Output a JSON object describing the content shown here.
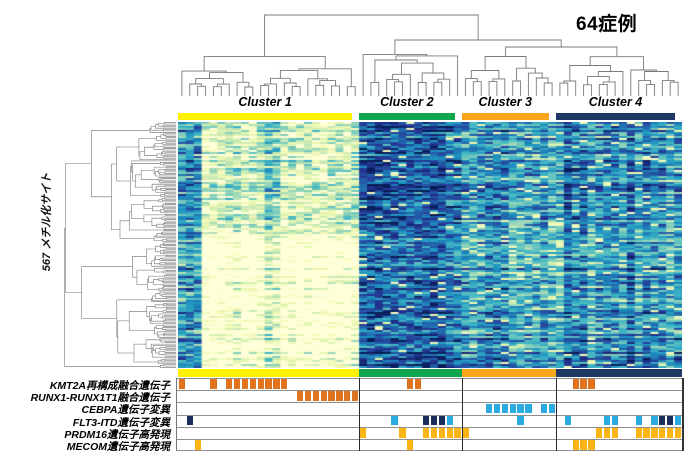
{
  "chart_data": {
    "type": "heatmap",
    "title": "64症例",
    "row_axis_label": "567 メチル化サイト",
    "n_samples": 64,
    "n_methylation_sites": 567,
    "legend_position": "none",
    "top_dendrogram": true,
    "left_dendrogram": true,
    "colormap_name": "YlGnBu (pale cream = low methylation, dark navy = high)",
    "colormap": [
      "#ffffd9",
      "#edf8b1",
      "#c7e9b4",
      "#7fcdbb",
      "#41b6c4",
      "#1d91c0",
      "#225ea8",
      "#253494",
      "#081d58"
    ],
    "clusters": [
      {
        "name": "Cluster 1",
        "color": "#FFF200",
        "col_start": 0,
        "col_end": 22,
        "n_cases": 23,
        "methylation_pattern": "low / pale"
      },
      {
        "name": "Cluster 2",
        "color": "#0FA650",
        "col_start": 23,
        "col_end": 35,
        "n_cases": 13,
        "methylation_pattern": "high / dark"
      },
      {
        "name": "Cluster 3",
        "color": "#FAA61B",
        "col_start": 36,
        "col_end": 47,
        "n_cases": 12,
        "methylation_pattern": "intermediate-high"
      },
      {
        "name": "Cluster 4",
        "color": "#1E3765",
        "col_start": 48,
        "col_end": 63,
        "n_cases": 16,
        "methylation_pattern": "intermediate"
      }
    ],
    "annotations": [
      {
        "label": "KMT2A再構成融合遺伝子",
        "marks": [
          {
            "color": "#E0731E",
            "cols": [
              0,
              4,
              6,
              7,
              8,
              9,
              10,
              11,
              12,
              13,
              29,
              30,
              50,
              51,
              52
            ]
          }
        ]
      },
      {
        "label": "RUNX1-RUNX1T1融合遺伝子",
        "marks": [
          {
            "color": "#E0731E",
            "cols": [
              15,
              16,
              17,
              18,
              19,
              20,
              21,
              22
            ]
          }
        ]
      },
      {
        "label": "CEBPA遺伝子変異",
        "marks": [
          {
            "color": "#29ABE2",
            "cols": [
              39,
              40,
              41,
              42,
              43,
              44,
              46,
              47
            ]
          }
        ]
      },
      {
        "label": "FLT3-ITD遺伝子変異",
        "marks": [
          {
            "color": "#29ABE2",
            "cols": [
              27,
              34,
              43,
              49,
              54,
              55,
              58,
              60,
              63
            ]
          },
          {
            "color": "#1B2D5B",
            "cols": [
              1,
              31,
              32,
              33,
              61,
              62
            ]
          }
        ]
      },
      {
        "label": "PRDM16遺伝子高発現",
        "marks": [
          {
            "color": "#FBB414",
            "cols": [
              23,
              28,
              31,
              32,
              33,
              34,
              35,
              36,
              53,
              54,
              55,
              58,
              59,
              60,
              61,
              62,
              63
            ]
          }
        ]
      },
      {
        "label": "MECOM遺伝子高発現",
        "marks": [
          {
            "color": "#FBB414",
            "cols": [
              2,
              29,
              50,
              51,
              52
            ]
          }
        ]
      }
    ],
    "heatmap_render": {
      "cols": 64,
      "rows": 123,
      "seed": 20240612,
      "cluster_base_level": [
        0.18,
        0.74,
        0.58,
        0.62
      ],
      "dark_columns_cluster1": [
        0,
        1,
        2,
        11,
        12
      ],
      "pale_bottom_half_cluster1": true,
      "column_striping_cluster4": true
    }
  }
}
